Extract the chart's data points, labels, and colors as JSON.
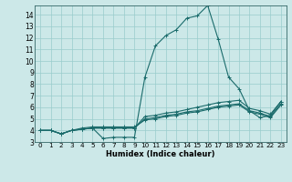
{
  "xlabel": "Humidex (Indice chaleur)",
  "bg_color": "#cce8e8",
  "grid_color": "#99cccc",
  "line_color": "#1a6b6b",
  "xlim": [
    -0.5,
    23.5
  ],
  "ylim": [
    3,
    14.8
  ],
  "xticks": [
    0,
    1,
    2,
    3,
    4,
    5,
    6,
    7,
    8,
    9,
    10,
    11,
    12,
    13,
    14,
    15,
    16,
    17,
    18,
    19,
    20,
    21,
    22,
    23
  ],
  "yticks": [
    3,
    4,
    5,
    6,
    7,
    8,
    9,
    10,
    11,
    12,
    13,
    14
  ],
  "series": [
    {
      "x": [
        0,
        1,
        2,
        3,
        4,
        5,
        6,
        7,
        8,
        9,
        10,
        11,
        12,
        13,
        14,
        15,
        16,
        17,
        18,
        19,
        20,
        21,
        22,
        23
      ],
      "y": [
        4.0,
        4.0,
        3.7,
        4.0,
        4.1,
        4.2,
        3.3,
        3.4,
        3.4,
        3.4,
        8.6,
        11.3,
        12.2,
        12.7,
        13.7,
        13.9,
        14.8,
        11.9,
        8.6,
        7.6,
        5.7,
        5.1,
        5.3,
        6.5
      ]
    },
    {
      "x": [
        0,
        1,
        2,
        3,
        4,
        5,
        6,
        7,
        8,
        9,
        10,
        11,
        12,
        13,
        14,
        15,
        16,
        17,
        18,
        19,
        20,
        21,
        22,
        23
      ],
      "y": [
        4.0,
        4.0,
        3.7,
        4.0,
        4.1,
        4.2,
        4.2,
        4.2,
        4.2,
        4.2,
        5.2,
        5.3,
        5.5,
        5.6,
        5.8,
        6.0,
        6.2,
        6.4,
        6.5,
        6.6,
        5.9,
        5.7,
        5.4,
        6.5
      ]
    },
    {
      "x": [
        0,
        1,
        2,
        3,
        4,
        5,
        6,
        7,
        8,
        9,
        10,
        11,
        12,
        13,
        14,
        15,
        16,
        17,
        18,
        19,
        20,
        21,
        22,
        23
      ],
      "y": [
        4.0,
        4.0,
        3.7,
        4.0,
        4.1,
        4.2,
        4.2,
        4.2,
        4.2,
        4.2,
        5.0,
        5.1,
        5.3,
        5.4,
        5.6,
        5.7,
        5.9,
        6.1,
        6.2,
        6.3,
        5.7,
        5.5,
        5.2,
        6.3
      ]
    },
    {
      "x": [
        0,
        1,
        2,
        3,
        4,
        5,
        6,
        7,
        8,
        9,
        10,
        11,
        12,
        13,
        14,
        15,
        16,
        17,
        18,
        19,
        20,
        21,
        22,
        23
      ],
      "y": [
        4.0,
        4.0,
        3.7,
        4.0,
        4.2,
        4.3,
        4.3,
        4.3,
        4.3,
        4.3,
        4.9,
        5.0,
        5.2,
        5.3,
        5.5,
        5.6,
        5.8,
        6.0,
        6.1,
        6.2,
        5.6,
        5.4,
        5.1,
        6.2
      ]
    }
  ]
}
